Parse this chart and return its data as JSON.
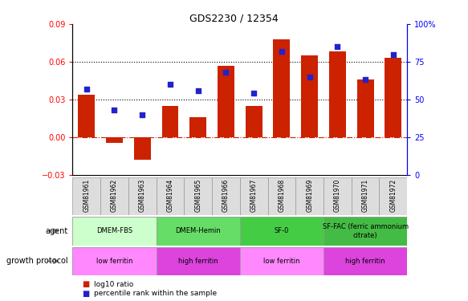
{
  "title": "GDS2230 / 12354",
  "samples": [
    "GSM81961",
    "GSM81962",
    "GSM81963",
    "GSM81964",
    "GSM81965",
    "GSM81966",
    "GSM81967",
    "GSM81968",
    "GSM81969",
    "GSM81970",
    "GSM81971",
    "GSM81972"
  ],
  "log10_ratio": [
    0.034,
    -0.005,
    -0.018,
    0.025,
    0.016,
    0.057,
    0.025,
    0.078,
    0.065,
    0.068,
    0.046,
    0.063
  ],
  "percentile_rank": [
    57,
    43,
    40,
    60,
    56,
    68,
    54,
    82,
    65,
    85,
    63,
    80
  ],
  "ylim_left": [
    -0.03,
    0.09
  ],
  "ylim_right": [
    0,
    100
  ],
  "yticks_left": [
    -0.03,
    0,
    0.03,
    0.06,
    0.09
  ],
  "yticks_right": [
    0,
    25,
    50,
    75,
    100
  ],
  "bar_color": "#cc2200",
  "dot_color": "#2222cc",
  "hline0_color": "#cc2200",
  "hline_dotted_color": "black",
  "agent_groups": [
    {
      "label": "DMEM-FBS",
      "start": 0,
      "end": 3,
      "color": "#ccffcc"
    },
    {
      "label": "DMEM-Hemin",
      "start": 3,
      "end": 6,
      "color": "#66dd66"
    },
    {
      "label": "SF-0",
      "start": 6,
      "end": 9,
      "color": "#44cc44"
    },
    {
      "label": "SF-FAC (ferric ammonium\ncitrate)",
      "start": 9,
      "end": 12,
      "color": "#44bb44"
    }
  ],
  "growth_groups": [
    {
      "label": "low ferritin",
      "start": 0,
      "end": 3,
      "color": "#ff88ff"
    },
    {
      "label": "high ferritin",
      "start": 3,
      "end": 6,
      "color": "#dd44dd"
    },
    {
      "label": "low ferritin",
      "start": 6,
      "end": 9,
      "color": "#ff88ff"
    },
    {
      "label": "high ferritin",
      "start": 9,
      "end": 12,
      "color": "#dd44dd"
    }
  ],
  "legend_items": [
    {
      "label": "log10 ratio",
      "color": "#cc2200"
    },
    {
      "label": "percentile rank within the sample",
      "color": "#2222cc"
    }
  ]
}
